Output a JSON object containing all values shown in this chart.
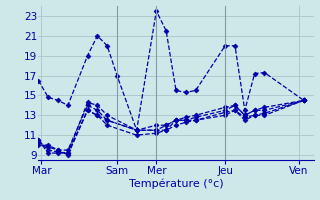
{
  "xlabel": "Température (°c)",
  "bg_color": "#cce8e8",
  "line_color": "#0000aa",
  "grid_color": "#aacccc",
  "spine_color": "#8899aa",
  "ylim": [
    8.5,
    24.0
  ],
  "yticks": [
    9,
    11,
    13,
    15,
    17,
    19,
    21,
    23
  ],
  "xlim": [
    0,
    28
  ],
  "xtick_positions": [
    0.3,
    8,
    12,
    19,
    26.5
  ],
  "xtick_labels": [
    "Mar",
    "Sam",
    "Mer",
    "Jeu",
    "Ven"
  ],
  "vlines": [
    8,
    12,
    19
  ],
  "lines": [
    {
      "x": [
        0,
        1,
        2,
        3,
        5,
        6,
        7,
        8,
        10,
        12,
        13,
        14,
        15,
        16,
        19,
        20,
        21,
        22,
        23,
        27
      ],
      "y": [
        16.5,
        14.8,
        14.5,
        14.0,
        19.0,
        21.0,
        20.0,
        17.0,
        11.5,
        23.5,
        21.5,
        15.5,
        15.3,
        15.5,
        20.0,
        20.0,
        13.5,
        17.2,
        17.3,
        14.5
      ]
    },
    {
      "x": [
        0,
        1,
        2,
        3,
        5,
        6,
        7,
        10,
        12,
        13,
        14,
        15,
        16,
        19,
        20,
        21,
        22,
        23,
        27
      ],
      "y": [
        10.5,
        9.5,
        9.3,
        9.2,
        13.5,
        13.0,
        12.5,
        11.5,
        11.5,
        11.5,
        12.0,
        12.3,
        12.5,
        13.3,
        13.5,
        12.8,
        13.0,
        13.0,
        14.5
      ]
    },
    {
      "x": [
        0,
        1,
        2,
        3,
        5,
        6,
        7,
        10,
        12,
        13,
        14,
        15,
        16,
        19,
        20,
        21,
        22,
        23,
        27
      ],
      "y": [
        10.3,
        9.8,
        9.5,
        9.0,
        13.5,
        13.0,
        12.0,
        11.0,
        11.2,
        11.5,
        12.5,
        12.5,
        12.5,
        13.0,
        13.5,
        12.5,
        13.0,
        13.2,
        14.5
      ]
    },
    {
      "x": [
        0,
        1,
        2,
        3,
        5,
        6,
        7,
        10,
        12,
        13,
        14,
        15,
        16,
        19,
        20,
        21,
        22,
        23,
        27
      ],
      "y": [
        10.0,
        10.0,
        9.5,
        9.5,
        14.0,
        13.5,
        12.5,
        11.5,
        11.5,
        12.0,
        12.5,
        12.5,
        12.8,
        13.5,
        14.0,
        13.0,
        13.5,
        13.5,
        14.5
      ]
    },
    {
      "x": [
        0,
        1,
        2,
        3,
        5,
        6,
        7,
        10,
        12,
        13,
        14,
        15,
        16,
        19,
        20,
        21,
        22,
        23,
        27
      ],
      "y": [
        10.5,
        9.2,
        9.2,
        9.2,
        14.3,
        14.0,
        13.0,
        11.5,
        12.0,
        12.0,
        12.5,
        12.8,
        13.0,
        13.8,
        14.0,
        13.0,
        13.5,
        13.8,
        14.5
      ]
    }
  ],
  "marker": "D",
  "marker_size": 2.5,
  "linestyle": "--",
  "linewidth": 0.9
}
